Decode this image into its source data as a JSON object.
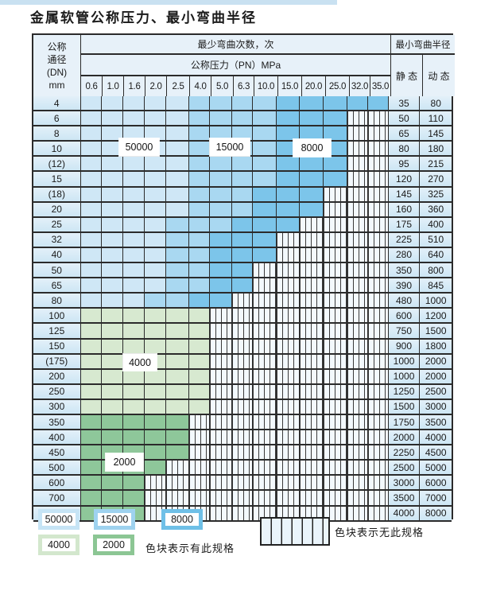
{
  "page": {
    "title": "金属软管公称压力、最小弯曲半径"
  },
  "table": {
    "header": {
      "dn_lines": [
        "公称",
        "通径",
        "(DN)",
        "mm"
      ],
      "bend_times": "最少弯曲次数，次",
      "pressure": "公称压力（PN）MPa",
      "bend_radius": "最小弯曲半径",
      "static": "静 态",
      "dynamic": "动 态",
      "pressures": [
        "0.6",
        "1.0",
        "1.6",
        "2.0",
        "2.5",
        "4.0",
        "5.0",
        "6.3",
        "10.0",
        "15.0",
        "20.0",
        "25.0",
        "32.0",
        "35.0"
      ]
    },
    "band_legend_meaning": {
      "1": "50000",
      "2": "15000",
      "3": "8000",
      "4": "4000",
      "5": "2000",
      "0": "no-spec"
    },
    "rows": [
      {
        "dn": "4",
        "cells": "11111222233333",
        "static": "35",
        "dynamic": "80"
      },
      {
        "dn": "6",
        "cells": "11111222233300",
        "static": "50",
        "dynamic": "110"
      },
      {
        "dn": "8",
        "cells": "11111222233300",
        "static": "65",
        "dynamic": "145"
      },
      {
        "dn": "10",
        "cells": "11111222233300",
        "static": "80",
        "dynamic": "180"
      },
      {
        "dn": "(12)",
        "cells": "11111222233300",
        "static": "95",
        "dynamic": "215"
      },
      {
        "dn": "15",
        "cells": "11111222233300",
        "static": "120",
        "dynamic": "270"
      },
      {
        "dn": "(18)",
        "cells": "11111222333000",
        "static": "145",
        "dynamic": "325"
      },
      {
        "dn": "20",
        "cells": "11111222333000",
        "static": "160",
        "dynamic": "360"
      },
      {
        "dn": "25",
        "cells": "11112223330000",
        "static": "175",
        "dynamic": "400"
      },
      {
        "dn": "32",
        "cells": "11112233300000",
        "static": "225",
        "dynamic": "510"
      },
      {
        "dn": "40",
        "cells": "11112233300000",
        "static": "280",
        "dynamic": "640"
      },
      {
        "dn": "50",
        "cells": "11112233000000",
        "static": "350",
        "dynamic": "800"
      },
      {
        "dn": "65",
        "cells": "11112233000000",
        "static": "390",
        "dynamic": "845"
      },
      {
        "dn": "80",
        "cells": "11122330000000",
        "static": "480",
        "dynamic": "1000"
      },
      {
        "dn": "100",
        "cells": "44444400000000",
        "static": "600",
        "dynamic": "1200"
      },
      {
        "dn": "125",
        "cells": "44444400000000",
        "static": "750",
        "dynamic": "1500"
      },
      {
        "dn": "150",
        "cells": "44444400000000",
        "static": "900",
        "dynamic": "1800"
      },
      {
        "dn": "(175)",
        "cells": "44444400000000",
        "static": "1000",
        "dynamic": "2000"
      },
      {
        "dn": "200",
        "cells": "44444400000000",
        "static": "1000",
        "dynamic": "2000"
      },
      {
        "dn": "250",
        "cells": "44444400000000",
        "static": "1250",
        "dynamic": "2500"
      },
      {
        "dn": "300",
        "cells": "44444400000000",
        "static": "1500",
        "dynamic": "3000"
      },
      {
        "dn": "350",
        "cells": "55555000000000",
        "static": "1750",
        "dynamic": "3500"
      },
      {
        "dn": "400",
        "cells": "55555000000000",
        "static": "2000",
        "dynamic": "4000"
      },
      {
        "dn": "450",
        "cells": "55555000000000",
        "static": "2250",
        "dynamic": "4500"
      },
      {
        "dn": "500",
        "cells": "55550000000000",
        "static": "2500",
        "dynamic": "5000"
      },
      {
        "dn": "600",
        "cells": "55500000000000",
        "static": "3000",
        "dynamic": "6000"
      },
      {
        "dn": "700",
        "cells": "55500000000000",
        "static": "3500",
        "dynamic": "7000"
      },
      {
        "dn": "800",
        "cells": "55500000000000",
        "static": "4000",
        "dynamic": "8000"
      }
    ],
    "region_labels": [
      "50000",
      "15000",
      "8000",
      "4000",
      "2000"
    ]
  },
  "legend": {
    "swatches": [
      {
        "label": "50000",
        "color": "#c6e4f5"
      },
      {
        "label": "15000",
        "color": "#9ed2ef"
      },
      {
        "label": "8000",
        "color": "#6fc0e7"
      },
      {
        "label": "4000",
        "color": "#d3e7cd"
      },
      {
        "label": "2000",
        "color": "#8cc694"
      }
    ],
    "has_spec_text": "色块表示有此规格",
    "no_spec_text": "色块表示无此规格"
  },
  "colors": {
    "band_50000": "#cfe7f6",
    "band_15000": "#a9d8f1",
    "band_8000": "#7cc5ea",
    "band_4000": "#d7e9d0",
    "band_2000": "#8ec79a",
    "hatch_bg": "#f3f9fd",
    "header_bg": "#e7f1f9",
    "border": "#2b2b2b",
    "strip": "#c9e1f1"
  }
}
